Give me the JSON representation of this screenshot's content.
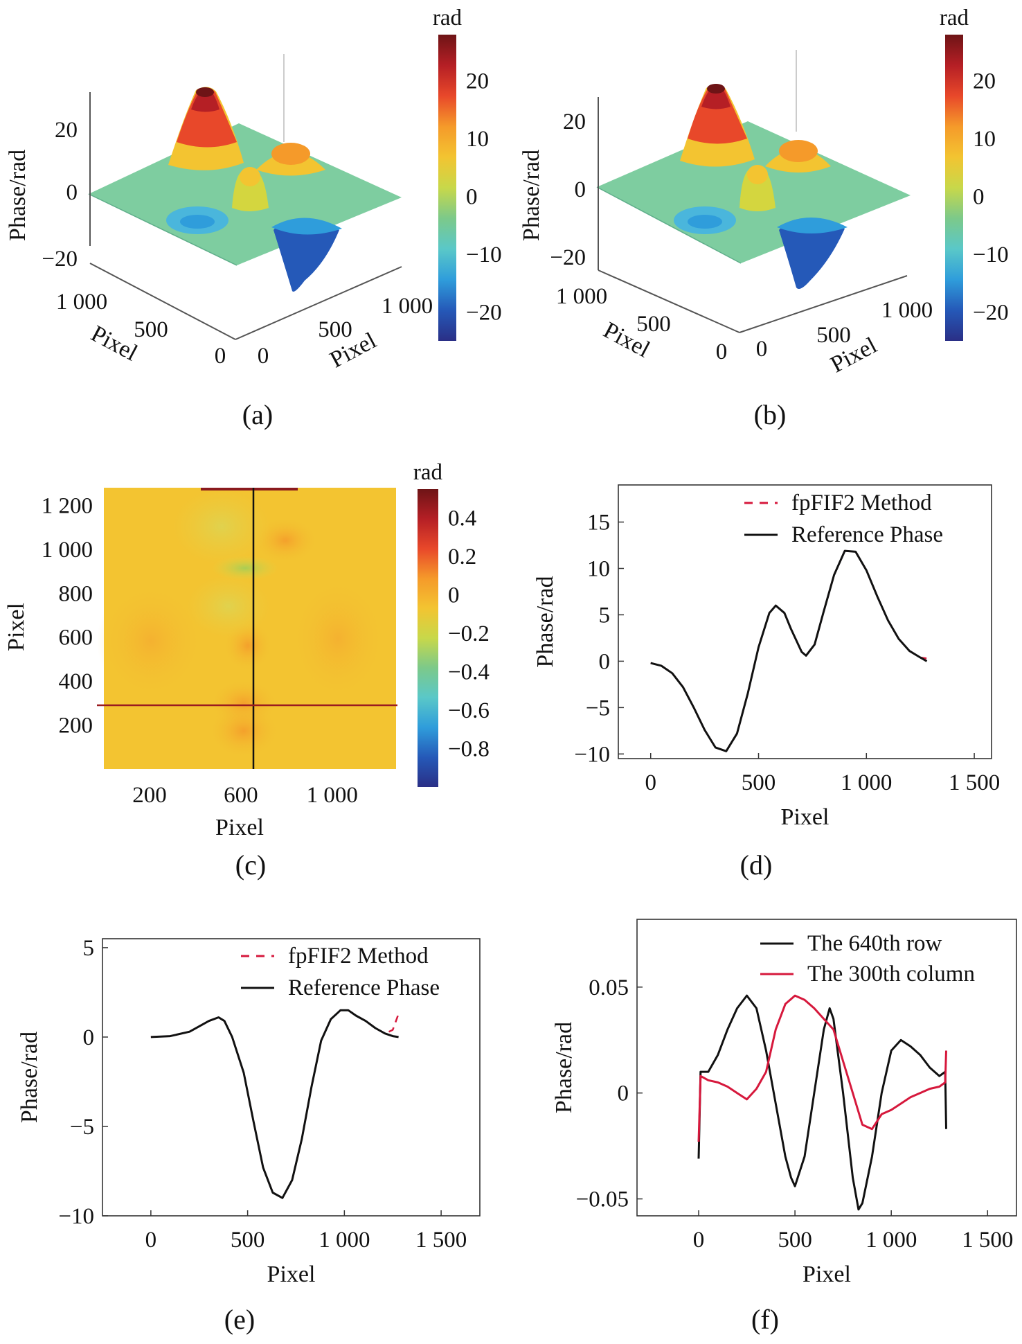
{
  "figure": {
    "panel_a": {
      "caption": "(a)",
      "zlabel": "Phase/rad",
      "zticks": [
        "20",
        "0",
        "−20"
      ],
      "xlabel": "Pixel",
      "xticks": [
        "1 000",
        "500",
        "0"
      ],
      "ylabel": "Pixel",
      "yticks": [
        "0",
        "500",
        "1 000"
      ],
      "colorbar": {
        "title": "rad",
        "ticks": [
          "20",
          "10",
          "0",
          "−10",
          "−20"
        ],
        "range": [
          -25,
          28
        ]
      }
    },
    "panel_b": {
      "caption": "(b)",
      "zlabel": "Phase/rad",
      "zticks": [
        "20",
        "0",
        "−20"
      ],
      "xlabel": "Pixel",
      "xticks": [
        "1 000",
        "500",
        "0"
      ],
      "ylabel": "Pixel",
      "yticks": [
        "0",
        "500",
        "1 000"
      ],
      "colorbar": {
        "title": "rad",
        "ticks": [
          "20",
          "10",
          "0",
          "−10",
          "−20"
        ],
        "range": [
          -25,
          28
        ]
      }
    },
    "panel_c": {
      "caption": "(c)",
      "xlabel": "Pixel",
      "ylabel": "Pixel",
      "xticks": [
        "200",
        "600",
        "1 000"
      ],
      "yticks": [
        "1 200",
        "1 000",
        "800",
        "600",
        "400",
        "200"
      ],
      "colorbar": {
        "title": "rad",
        "ticks": [
          "0.4",
          "0.2",
          "0",
          "−0.2",
          "−0.4",
          "−0.6",
          "−0.8"
        ],
        "range": [
          -1.0,
          0.55
        ]
      }
    },
    "panel_d": {
      "caption": "(d)"
    },
    "panel_e": {
      "caption": "(e)"
    },
    "panel_f": {
      "caption": "(f)"
    }
  },
  "colors": {
    "red_series": "#d6183c",
    "black_series": "#111111",
    "colormap": [
      "#2a2f86",
      "#2559b8",
      "#2f9ddb",
      "#5ac8c8",
      "#7cc98a",
      "#c8d84a",
      "#f3c431",
      "#f59a2a",
      "#e8482a",
      "#b51f25",
      "#6e1416"
    ]
  },
  "chart_data": [
    {
      "type": "surface3d",
      "panel": "a",
      "zlabel": "Phase/rad",
      "xlabel": "Pixel",
      "ylabel": "Pixel",
      "zlim": [
        -25,
        28
      ],
      "peaks": [
        {
          "kind": "peak",
          "amplitude": 27
        },
        {
          "kind": "peak",
          "amplitude": 11
        },
        {
          "kind": "peak",
          "amplitude": 10
        },
        {
          "kind": "trough",
          "amplitude": -24
        },
        {
          "kind": "trough",
          "amplitude": -6
        }
      ]
    },
    {
      "type": "surface3d",
      "panel": "b",
      "zlabel": "Phase/rad",
      "xlabel": "Pixel",
      "ylabel": "Pixel",
      "zlim": [
        -25,
        28
      ],
      "peaks": [
        {
          "kind": "peak",
          "amplitude": 27
        },
        {
          "kind": "peak",
          "amplitude": 11
        },
        {
          "kind": "peak",
          "amplitude": 10
        },
        {
          "kind": "trough",
          "amplitude": -24
        },
        {
          "kind": "trough",
          "amplitude": -6
        }
      ]
    },
    {
      "type": "heatmap",
      "panel": "c",
      "xlabel": "Pixel",
      "ylabel": "Pixel",
      "xlim": [
        0,
        1280
      ],
      "ylim": [
        0,
        1280
      ],
      "crosshair": {
        "x": 640,
        "y": 300
      },
      "clim": [
        -1.0,
        0.55
      ]
    },
    {
      "type": "line",
      "panel": "d",
      "xlabel": "Pixel",
      "ylabel": "Phase/rad",
      "xlim": [
        -150,
        1580
      ],
      "ylim": [
        -10.5,
        19
      ],
      "xticks": [
        0,
        500,
        1000,
        1500
      ],
      "xtick_labels": [
        "0",
        "500",
        "1 000",
        "1 500"
      ],
      "yticks": [
        15,
        10,
        5,
        0,
        -5,
        -10
      ],
      "ytick_labels": [
        "15",
        "10",
        "5",
        "0",
        "−5",
        "−10"
      ],
      "series": [
        {
          "name": "fpFIF2 Method",
          "style": "dashed",
          "color": "#d6183c",
          "x": [
            0,
            50,
            100,
            150,
            200,
            250,
            300,
            350,
            400,
            450,
            500,
            550,
            580,
            620,
            650,
            700,
            720,
            760,
            800,
            850,
            900,
            950,
            1000,
            1050,
            1100,
            1150,
            1200,
            1250,
            1280
          ],
          "y": [
            -0.2,
            -0.5,
            -1.3,
            -2.8,
            -5.0,
            -7.4,
            -9.3,
            -9.7,
            -7.8,
            -3.5,
            1.5,
            5.2,
            6.0,
            5.2,
            3.5,
            1.0,
            0.6,
            1.8,
            5.2,
            9.3,
            11.9,
            11.8,
            9.8,
            7.0,
            4.4,
            2.4,
            1.1,
            0.4,
            0.3
          ]
        },
        {
          "name": "Reference Phase",
          "style": "solid",
          "color": "#111111",
          "x": [
            0,
            50,
            100,
            150,
            200,
            250,
            300,
            350,
            400,
            450,
            500,
            550,
            580,
            620,
            650,
            700,
            720,
            760,
            800,
            850,
            900,
            950,
            1000,
            1050,
            1100,
            1150,
            1200,
            1250,
            1280
          ],
          "y": [
            -0.2,
            -0.5,
            -1.3,
            -2.8,
            -5.0,
            -7.4,
            -9.3,
            -9.7,
            -7.8,
            -3.5,
            1.5,
            5.2,
            6.0,
            5.2,
            3.5,
            1.0,
            0.6,
            1.8,
            5.2,
            9.3,
            11.9,
            11.8,
            9.8,
            7.0,
            4.4,
            2.4,
            1.1,
            0.4,
            0.0
          ]
        }
      ]
    },
    {
      "type": "line",
      "panel": "e",
      "xlabel": "Pixel",
      "ylabel": "Phase/rad",
      "xlim": [
        -250,
        1700
      ],
      "ylim": [
        -10,
        5.5
      ],
      "xticks": [
        0,
        500,
        1000,
        1500
      ],
      "xtick_labels": [
        "0",
        "500",
        "1 000",
        "1 500"
      ],
      "yticks": [
        5,
        0,
        -5,
        -10
      ],
      "ytick_labels": [
        "5",
        "0",
        "−5",
        "−10"
      ],
      "series": [
        {
          "name": "fpFIF2 Method",
          "style": "dashed",
          "color": "#d6183c",
          "x": [
            0,
            100,
            200,
            300,
            350,
            380,
            420,
            480,
            530,
            580,
            630,
            680,
            730,
            780,
            830,
            880,
            930,
            980,
            1020,
            1060,
            1110,
            1160,
            1210,
            1250,
            1280
          ],
          "y": [
            0.0,
            0.05,
            0.3,
            0.9,
            1.1,
            0.9,
            0.0,
            -2.0,
            -4.7,
            -7.3,
            -8.7,
            -9.0,
            -8.0,
            -5.7,
            -2.8,
            -0.2,
            1.0,
            1.5,
            1.5,
            1.2,
            0.9,
            0.5,
            0.2,
            0.4,
            1.3
          ]
        },
        {
          "name": "Reference Phase",
          "style": "solid",
          "color": "#111111",
          "x": [
            0,
            100,
            200,
            300,
            350,
            380,
            420,
            480,
            530,
            580,
            630,
            680,
            730,
            780,
            830,
            880,
            930,
            980,
            1020,
            1060,
            1110,
            1160,
            1210,
            1250,
            1280
          ],
          "y": [
            0.0,
            0.05,
            0.3,
            0.9,
            1.1,
            0.9,
            0.0,
            -2.0,
            -4.7,
            -7.3,
            -8.7,
            -9.0,
            -8.0,
            -5.7,
            -2.8,
            -0.2,
            1.0,
            1.5,
            1.5,
            1.2,
            0.9,
            0.5,
            0.2,
            0.05,
            0.0
          ]
        }
      ]
    },
    {
      "type": "line",
      "panel": "f",
      "xlabel": "Pixel",
      "ylabel": "Phase/rad",
      "xlim": [
        -320,
        1650
      ],
      "ylim": [
        -0.058,
        0.082
      ],
      "xticks": [
        0,
        500,
        1000,
        1500
      ],
      "xtick_labels": [
        "0",
        "500",
        "1 000",
        "1 500"
      ],
      "yticks": [
        0.05,
        0,
        -0.05
      ],
      "ytick_labels": [
        "0.05",
        "0",
        "−0.05"
      ],
      "series": [
        {
          "name": "The 640th row",
          "style": "solid",
          "color": "#111111",
          "x": [
            0,
            10,
            50,
            100,
            150,
            200,
            250,
            300,
            350,
            400,
            450,
            480,
            500,
            550,
            600,
            650,
            680,
            700,
            750,
            800,
            830,
            850,
            900,
            950,
            1000,
            1050,
            1100,
            1150,
            1200,
            1250,
            1280,
            1285
          ],
          "y": [
            -0.031,
            0.01,
            0.01,
            0.018,
            0.03,
            0.04,
            0.046,
            0.04,
            0.02,
            -0.005,
            -0.03,
            -0.04,
            -0.044,
            -0.03,
            0.0,
            0.03,
            0.04,
            0.035,
            0.0,
            -0.04,
            -0.055,
            -0.052,
            -0.03,
            0.0,
            0.02,
            0.025,
            0.022,
            0.018,
            0.012,
            0.008,
            0.01,
            -0.017
          ]
        },
        {
          "name": "The 300th column",
          "style": "solid",
          "color": "#d6183c",
          "x": [
            0,
            10,
            50,
            100,
            150,
            200,
            250,
            300,
            350,
            400,
            450,
            500,
            550,
            600,
            650,
            700,
            750,
            800,
            850,
            900,
            950,
            1000,
            1050,
            1100,
            1150,
            1200,
            1250,
            1280,
            1285
          ],
          "y": [
            -0.023,
            0.008,
            0.006,
            0.005,
            0.003,
            0.0,
            -0.003,
            0.002,
            0.01,
            0.03,
            0.042,
            0.046,
            0.044,
            0.04,
            0.035,
            0.03,
            0.015,
            0.0,
            -0.015,
            -0.017,
            -0.01,
            -0.008,
            -0.005,
            -0.002,
            0.0,
            0.002,
            0.003,
            0.005,
            0.02
          ]
        }
      ]
    }
  ]
}
